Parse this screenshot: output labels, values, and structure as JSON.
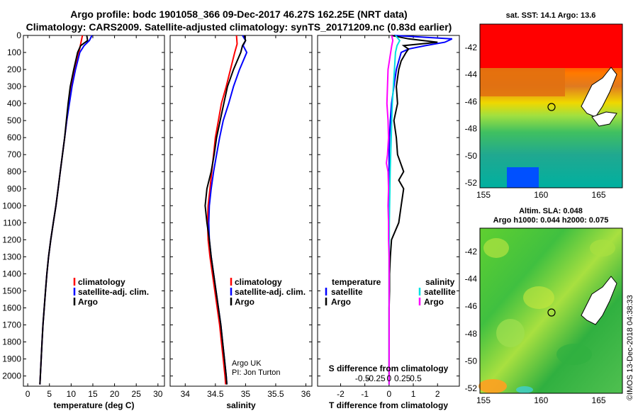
{
  "header": {
    "line1": "Argo profile: bodc 1901058_366 09-Dec-2017 46.27S 162.25E (NRT data)",
    "line2": "Climatology: CARS2009. Satellite-adjusted climatology: synTS_20171209.nc (0.83d earlier)"
  },
  "colors": {
    "climatology": "#ff0000",
    "satellite": "#0000ff",
    "argo": "#000000",
    "salinity_diff": "#00e0e0",
    "argo_salinity_diff": "#ff00ff"
  },
  "chart_data": [
    {
      "type": "line",
      "xlabel": "temperature (deg C)",
      "ylabel": "",
      "xlim": [
        -1,
        31.5
      ],
      "ylim": [
        2060,
        0
      ],
      "xticks": [
        0,
        5,
        10,
        15,
        20,
        25,
        30
      ],
      "yticks": [
        0,
        100,
        200,
        300,
        400,
        500,
        600,
        700,
        800,
        900,
        1000,
        1100,
        1200,
        1300,
        1400,
        1500,
        1600,
        1700,
        1800,
        1900,
        2000
      ],
      "legend": [
        "climatology",
        "satellite-adj. clim.",
        "Argo"
      ],
      "series": [
        {
          "name": "climatology",
          "color": "#ff0000",
          "depth": [
            0,
            50,
            100,
            200,
            300,
            400,
            500,
            600,
            700,
            800,
            900,
            1000,
            1100,
            1200,
            1300,
            1400,
            1500,
            1600,
            1700,
            1800,
            1900,
            2000,
            2050
          ],
          "values": [
            12.6,
            12.2,
            11.8,
            10.8,
            10.0,
            9.5,
            9.0,
            8.5,
            8.0,
            7.5,
            7.0,
            6.5,
            5.9,
            5.3,
            4.8,
            4.4,
            4.1,
            3.8,
            3.5,
            3.3,
            3.1,
            2.9,
            2.8
          ]
        },
        {
          "name": "satellite-adj. clim.",
          "color": "#0000ff",
          "depth": [
            0,
            30,
            60,
            100,
            200,
            300,
            400,
            500,
            600,
            700,
            800,
            900,
            1000,
            1100,
            1200,
            1300,
            1400,
            1500,
            1600,
            1700,
            1800,
            1900,
            2000,
            2050
          ],
          "values": [
            14.8,
            14.2,
            13.0,
            12.0,
            11.0,
            10.2,
            9.6,
            9.0,
            8.5,
            8.0,
            7.5,
            7.0,
            6.5,
            5.9,
            5.3,
            4.8,
            4.4,
            4.1,
            3.8,
            3.5,
            3.3,
            3.1,
            2.9,
            2.8
          ]
        },
        {
          "name": "Argo",
          "color": "#000000",
          "depth": [
            0,
            30,
            60,
            100,
            200,
            300,
            400,
            500,
            600,
            700,
            800,
            900,
            1000,
            1100,
            1200,
            1300,
            1400,
            1500,
            1600,
            1700,
            1800,
            1900,
            2000,
            2050
          ],
          "values": [
            13.6,
            13.8,
            12.2,
            11.5,
            10.6,
            9.8,
            9.3,
            8.9,
            8.5,
            8.0,
            7.5,
            7.0,
            6.5,
            5.9,
            5.3,
            4.8,
            4.4,
            4.1,
            3.8,
            3.5,
            3.3,
            3.1,
            2.9,
            2.8
          ]
        }
      ]
    },
    {
      "type": "line",
      "xlabel": "salinity",
      "ylabel": "",
      "xlim": [
        33.75,
        36.1
      ],
      "ylim": [
        2060,
        0
      ],
      "xticks": [
        34,
        34.5,
        35,
        35.5,
        36
      ],
      "xticklabels": [
        "34",
        "34.5",
        "35",
        "35.5",
        "36"
      ],
      "legend": [
        "climatology",
        "satellite-adj. clim.",
        "Argo"
      ],
      "annotation": [
        "Argo UK",
        "PI: Jon Turton"
      ],
      "series": [
        {
          "name": "climatology",
          "color": "#ff0000",
          "depth": [
            0,
            50,
            100,
            200,
            300,
            400,
            500,
            600,
            700,
            800,
            900,
            1000,
            1100,
            1200,
            1300,
            1400,
            1500,
            1600,
            1700,
            1800,
            1900,
            2000,
            2050
          ],
          "values": [
            34.85,
            34.86,
            34.82,
            34.75,
            34.68,
            34.6,
            34.55,
            34.5,
            34.47,
            34.44,
            34.41,
            34.38,
            34.37,
            34.38,
            34.41,
            34.45,
            34.49,
            34.53,
            34.57,
            34.6,
            34.63,
            34.66,
            34.67
          ]
        },
        {
          "name": "satellite-adj. clim.",
          "color": "#0000ff",
          "depth": [
            0,
            30,
            60,
            100,
            200,
            300,
            400,
            500,
            600,
            700,
            800,
            900,
            1000,
            1100,
            1200,
            1300,
            1400,
            1500,
            1600,
            1700,
            1800,
            1900,
            2000,
            2050
          ],
          "values": [
            34.95,
            35.0,
            34.96,
            35.02,
            34.9,
            34.8,
            34.72,
            34.63,
            34.57,
            34.52,
            34.47,
            34.43,
            34.4,
            34.39,
            34.4,
            34.43,
            34.47,
            34.51,
            34.55,
            34.59,
            34.62,
            34.65,
            34.68,
            34.69
          ]
        },
        {
          "name": "Argo",
          "color": "#000000",
          "depth": [
            0,
            30,
            60,
            100,
            200,
            300,
            400,
            500,
            600,
            700,
            800,
            900,
            1000,
            1100,
            1200,
            1300,
            1400,
            1500,
            1600,
            1700,
            1800,
            1900,
            2000,
            2050
          ],
          "values": [
            34.98,
            35.0,
            34.95,
            34.92,
            34.8,
            34.7,
            34.64,
            34.58,
            34.52,
            34.48,
            34.43,
            34.36,
            34.33,
            34.36,
            34.4,
            34.43,
            34.47,
            34.51,
            34.55,
            34.59,
            34.62,
            34.65,
            34.68,
            34.69
          ]
        }
      ]
    },
    {
      "type": "line",
      "xlabel": "T difference from climatology",
      "xlabel2": "S difference from climatology",
      "ylabel": "",
      "xlim": [
        -2.95,
        2.9
      ],
      "ylim": [
        2060,
        0
      ],
      "xticks": [
        -2,
        -1,
        0,
        1,
        2
      ],
      "xticks2": [
        -0.5,
        -0.25,
        0,
        0.25,
        0.5
      ],
      "xticklabels2": [
        "-0.5",
        "-0.25",
        "0",
        "0.25",
        "0.5"
      ],
      "legend_left_title": "temperature",
      "legend_right_title": "salinity",
      "legend": [
        "satellite",
        "Argo",
        "satellite",
        "Argo"
      ],
      "series": [
        {
          "name": "satellite",
          "group": "temperature",
          "color": "#0000ff",
          "depth": [
            0,
            20,
            40,
            60,
            80,
            100,
            150,
            200,
            300,
            400,
            500,
            600,
            700,
            800,
            900,
            1000,
            1200,
            1400,
            1600,
            1800,
            2000,
            2050
          ],
          "values": [
            0.2,
            2.6,
            2.3,
            1.5,
            0.8,
            0.5,
            0.4,
            0.3,
            0.2,
            0.1,
            0.05,
            0.02,
            0.0,
            0.0,
            0.0,
            0.0,
            0.0,
            0.0,
            0.0,
            0.0,
            0.0,
            0.0
          ]
        },
        {
          "name": "Argo",
          "group": "temperature",
          "color": "#000000",
          "depth": [
            0,
            20,
            40,
            60,
            80,
            100,
            150,
            200,
            300,
            400,
            500,
            600,
            700,
            800,
            850,
            900,
            1000,
            1100,
            1200,
            1300,
            1400,
            1500,
            1600,
            1800,
            2000,
            2050
          ],
          "values": [
            0.1,
            0.8,
            2.0,
            0.6,
            0.8,
            0.7,
            0.5,
            0.4,
            0.3,
            0.35,
            0.2,
            0.3,
            0.35,
            0.6,
            0.4,
            0.6,
            0.5,
            0.4,
            0.1,
            0.05,
            0.02,
            0.02,
            0.0,
            0.0,
            0.0,
            0.0
          ]
        },
        {
          "name": "satellite",
          "group": "salinity",
          "color": "#00e0e0",
          "depth": [
            0,
            30,
            60,
            100,
            200,
            300,
            400,
            500,
            600,
            700,
            800,
            900,
            1000,
            1100,
            1200,
            1400,
            1600,
            1800,
            2000,
            2050
          ],
          "values": [
            0.12,
            0.2,
            0.15,
            0.12,
            0.1,
            0.08,
            0.06,
            0.05,
            0.04,
            0.03,
            0.02,
            0.015,
            0.01,
            0.005,
            0.003,
            0.0,
            0.0,
            0.0,
            0.0,
            0.0
          ]
        },
        {
          "name": "Argo",
          "group": "salinity",
          "color": "#ff00ff",
          "depth": [
            0,
            30,
            60,
            100,
            200,
            300,
            400,
            500,
            600,
            700,
            750,
            800,
            900,
            1000,
            1100,
            1200,
            1300,
            1400,
            1600,
            1800,
            2000,
            2050
          ],
          "values": [
            0.05,
            0.07,
            0.05,
            0.03,
            -0.02,
            -0.03,
            -0.04,
            -0.02,
            -0.01,
            -0.03,
            -0.05,
            -0.02,
            -0.01,
            -0.02,
            -0.01,
            -0.01,
            0.0,
            0.0,
            0.0,
            0.0,
            0.0,
            0.0
          ]
        }
      ]
    }
  ],
  "maps": {
    "sst": {
      "title": "sat. SST: 14.1 Argo: 13.6",
      "lon_ticks": [
        "155",
        "160",
        "165"
      ],
      "lat_ticks": [
        "-42",
        "-44",
        "-46",
        "-48",
        "-50",
        "-52"
      ]
    },
    "sla": {
      "title1": "Altim. SLA: 0.048",
      "title2": "Argo h1000: 0.044 h2000: 0.075",
      "lon_ticks": [
        "155",
        "160",
        "165"
      ],
      "lat_ticks": [
        "-42",
        "-44",
        "-46",
        "-48",
        "-50",
        "-52"
      ]
    }
  },
  "credit": "©IMOS 13-Dec-2018 04:38:33"
}
